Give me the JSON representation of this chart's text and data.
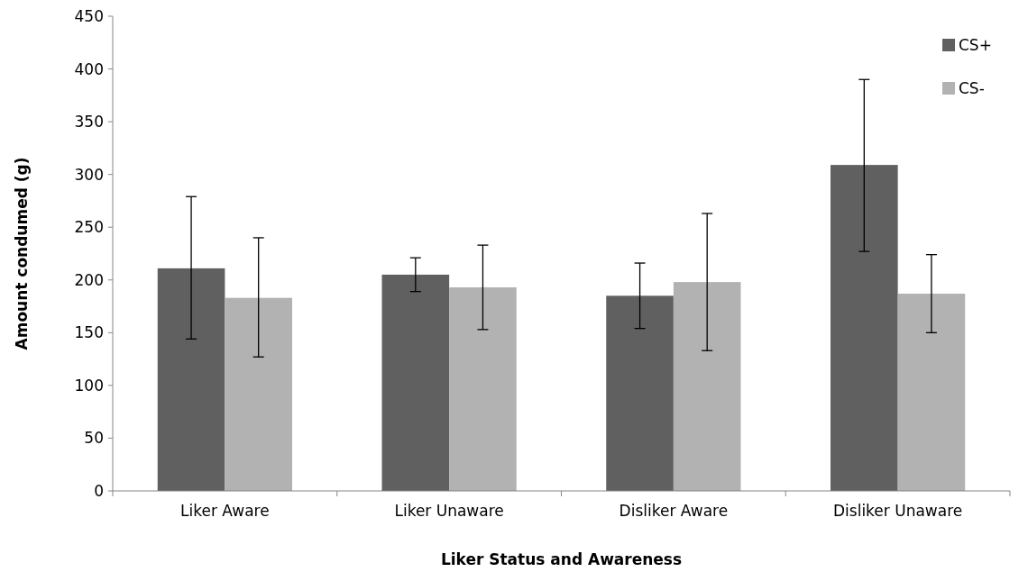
{
  "chart_data": {
    "type": "bar",
    "xlabel": "Liker Status and Awareness",
    "ylabel": "Amount condumed (g)",
    "categories": [
      "Liker Aware",
      "Liker Unaware",
      "Disliker Aware",
      "Disliker Unaware"
    ],
    "series": [
      {
        "name": "CS+",
        "color": "#606060",
        "values": [
          211,
          205,
          185,
          309
        ],
        "errors": [
          [
            144,
            279
          ],
          [
            189,
            221
          ],
          [
            154,
            216
          ],
          [
            227,
            390
          ]
        ]
      },
      {
        "name": "CS-",
        "color": "#b2b2b2",
        "values": [
          183,
          193,
          198,
          187
        ],
        "errors": [
          [
            127,
            240
          ],
          [
            153,
            233
          ],
          [
            133,
            263
          ],
          [
            150,
            224
          ]
        ]
      }
    ],
    "ylim": [
      0,
      450
    ],
    "yticks": [
      0,
      50,
      100,
      150,
      200,
      250,
      300,
      350,
      400,
      450
    ],
    "grid": false,
    "legend": "top right"
  }
}
